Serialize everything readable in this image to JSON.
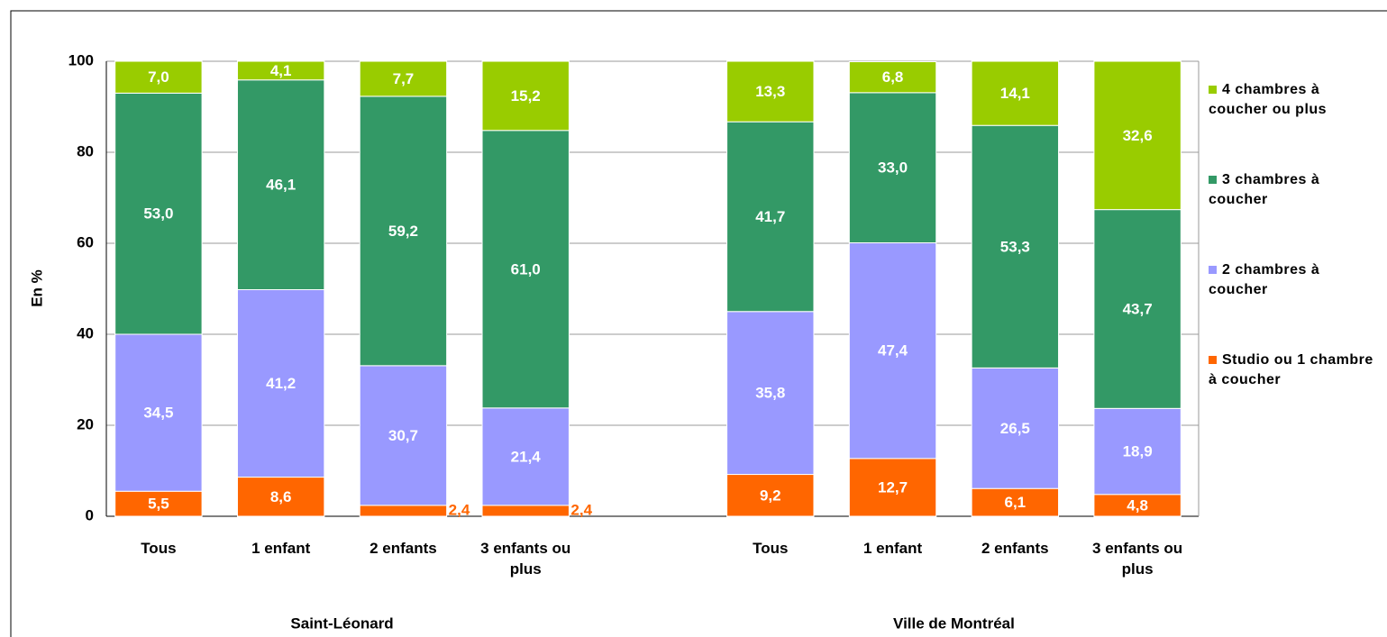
{
  "chart_data": {
    "type": "stacked_bar",
    "y_label": "En %",
    "categories": [
      "Tous",
      "1 enfant",
      "2 enfants",
      "3 enfants ou plus",
      null,
      "Tous",
      "1 enfant",
      "2 enfants",
      "3 enfants ou plus"
    ],
    "groups": [
      "Saint-Léonard",
      "Ville de Montréal"
    ],
    "ylim": [
      0,
      100
    ],
    "yticks": [
      0,
      20,
      40,
      60,
      80,
      100
    ],
    "grid": true,
    "legend": "right",
    "series": [
      {
        "name": "Studio ou 1 chambre à coucher",
        "color": "#ff6600",
        "values": [
          5.5,
          8.6,
          2.4,
          2.4,
          null,
          9.2,
          12.7,
          6.1,
          4.8
        ],
        "value_labels": [
          "5,5",
          "8,6",
          "2,4",
          "2,4",
          null,
          "9,2",
          "12,7",
          "6,1",
          "4,8"
        ]
      },
      {
        "name": "2 chambres à coucher",
        "color": "#9999ff",
        "values": [
          34.5,
          41.2,
          30.7,
          21.4,
          null,
          35.8,
          47.4,
          26.5,
          18.9
        ],
        "value_labels": [
          "34,5",
          "41,2",
          "30,7",
          "21,4",
          null,
          "35,8",
          "47,4",
          "26,5",
          "18,9"
        ]
      },
      {
        "name": "3 chambres à coucher",
        "color": "#339966",
        "values": [
          53.0,
          46.1,
          59.2,
          61.0,
          null,
          41.7,
          33.0,
          53.3,
          43.7
        ],
        "value_labels": [
          "53,0",
          "46,1",
          "59,2",
          "61,0",
          null,
          "41,7",
          "33,0",
          "53,3",
          "43,7"
        ]
      },
      {
        "name": "4 chambres à coucher ou plus",
        "color": "#99cc00",
        "values": [
          7.0,
          4.1,
          7.7,
          15.2,
          null,
          13.3,
          6.8,
          14.1,
          32.6
        ],
        "value_labels": [
          "7,0",
          "4,1",
          "7,7",
          "15,2",
          null,
          "13,3",
          "6,8",
          "14,1",
          "32,6"
        ]
      }
    ]
  }
}
